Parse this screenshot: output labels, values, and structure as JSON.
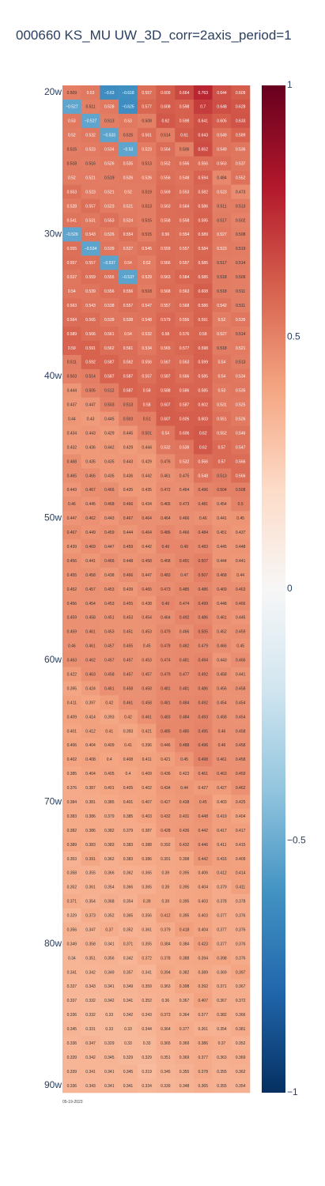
{
  "chart_data": {
    "type": "heatmap",
    "title": "000660 KS_MU UW_3D_corr=2axis_period=1",
    "x_tick_label": "05-19-2023",
    "y_tick_labels": [
      "20w",
      "30w",
      "40w",
      "50w",
      "60w",
      "70w",
      "80w",
      "90w"
    ],
    "y_tick_rows": [
      0,
      10,
      20,
      30,
      40,
      50,
      60,
      70
    ],
    "colorbar": {
      "min": -1,
      "max": 1,
      "ticks": [
        "1",
        "0.5",
        "0",
        "−0.5",
        "−1"
      ],
      "tick_values": [
        1,
        0.5,
        0,
        -0.5,
        -1
      ]
    },
    "colorscale": [
      "#053061",
      "#2166ac",
      "#4393c3",
      "#92c5de",
      "#d1e5f0",
      "#f7f7f7",
      "#fddbc7",
      "#f4a582",
      "#d6604d",
      "#b2182b",
      "#67001f"
    ],
    "rows": [
      [
        0.509,
        0.53,
        -0.63,
        -0.618,
        0.557,
        0.609,
        0.664,
        0.763,
        0.644,
        0.609
      ],
      [
        -0.527,
        0.511,
        0.528,
        -0.625,
        0.577,
        0.608,
        0.598,
        0.7,
        0.648,
        0.628
      ],
      [
        0.53,
        -0.527,
        0.513,
        0.53,
        0.508,
        0.62,
        0.598,
        0.641,
        0.605,
        0.633
      ],
      [
        0.52,
        0.532,
        -0.533,
        0.515,
        0.561,
        0.514,
        0.61,
        0.643,
        0.549,
        0.589
      ],
      [
        0.515,
        0.523,
        0.534,
        -0.53,
        0.523,
        0.564,
        0.506,
        0.652,
        0.549,
        0.536
      ],
      [
        0.518,
        0.516,
        0.526,
        0.535,
        0.513,
        0.552,
        0.556,
        0.556,
        0.563,
        0.537
      ],
      [
        0.52,
        0.521,
        0.519,
        0.526,
        0.526,
        0.556,
        0.548,
        0.594,
        0.484,
        0.552
      ],
      [
        0.553,
        0.523,
        0.521,
        0.52,
        0.519,
        0.569,
        0.553,
        0.582,
        0.523,
        0.473
      ],
      [
        0.528,
        0.557,
        0.523,
        0.521,
        0.513,
        0.563,
        0.564,
        0.586,
        0.511,
        0.513
      ],
      [
        0.541,
        0.531,
        0.553,
        0.524,
        0.515,
        0.558,
        0.558,
        0.595,
        0.517,
        0.502
      ],
      [
        -0.529,
        0.543,
        0.526,
        0.554,
        0.515,
        0.56,
        0.554,
        0.589,
        0.527,
        0.508
      ],
      [
        0.555,
        -0.534,
        0.539,
        0.527,
        0.545,
        0.559,
        0.557,
        0.584,
        0.523,
        0.519
      ],
      [
        0.557,
        0.557,
        -0.537,
        0.54,
        0.52,
        0.566,
        0.557,
        0.585,
        0.517,
        0.514
      ],
      [
        0.537,
        0.559,
        0.555,
        -0.537,
        0.529,
        0.563,
        0.584,
        0.585,
        0.518,
        0.509
      ],
      [
        0.54,
        0.539,
        0.556,
        0.556,
        0.518,
        0.568,
        0.563,
        0.608,
        0.518,
        0.511
      ],
      [
        0.563,
        0.543,
        0.538,
        0.557,
        0.547,
        0.557,
        0.568,
        0.586,
        0.542,
        0.511
      ],
      [
        0.564,
        0.565,
        0.539,
        0.538,
        0.548,
        0.579,
        0.556,
        0.591,
        0.52,
        0.535
      ],
      [
        0.589,
        0.566,
        0.561,
        0.54,
        0.532,
        0.58,
        0.576,
        0.58,
        0.527,
        0.514
      ],
      [
        0.59,
        0.591,
        0.562,
        0.561,
        0.534,
        0.565,
        0.577,
        0.598,
        0.518,
        0.521
      ],
      [
        0.511,
        0.592,
        0.587,
        0.562,
        0.556,
        0.567,
        0.563,
        0.599,
        0.54,
        0.513
      ],
      [
        0.503,
        0.514,
        0.587,
        0.587,
        0.557,
        0.587,
        0.566,
        0.585,
        0.54,
        0.534
      ],
      [
        0.444,
        0.505,
        0.512,
        0.587,
        0.58,
        0.588,
        0.586,
        0.585,
        0.53,
        0.535
      ],
      [
        0.437,
        0.447,
        0.503,
        0.513,
        0.58,
        0.607,
        0.587,
        0.602,
        0.531,
        0.525
      ],
      [
        0.44,
        0.43,
        0.445,
        0.503,
        0.51,
        0.607,
        0.605,
        0.603,
        0.551,
        0.526
      ],
      [
        0.434,
        0.443,
        0.429,
        0.445,
        0.501,
        0.54,
        0.606,
        0.62,
        0.552,
        0.546
      ],
      [
        0.432,
        0.436,
        0.442,
        0.429,
        0.444,
        0.532,
        0.539,
        0.62,
        0.57,
        0.547
      ],
      [
        0.468,
        0.435,
        0.435,
        0.443,
        0.429,
        0.476,
        0.532,
        0.556,
        0.57,
        0.566
      ],
      [
        0.465,
        0.466,
        0.435,
        0.436,
        0.442,
        0.461,
        0.475,
        0.548,
        0.513,
        0.566
      ],
      [
        0.443,
        0.467,
        0.466,
        0.435,
        0.435,
        0.472,
        0.464,
        0.496,
        0.504,
        0.508
      ],
      [
        0.46,
        0.445,
        0.468,
        0.466,
        0.434,
        0.465,
        0.473,
        0.481,
        0.454,
        0.5
      ],
      [
        0.447,
        0.462,
        0.443,
        0.467,
        0.464,
        0.464,
        0.466,
        0.46,
        0.441,
        0.45
      ],
      [
        0.467,
        0.449,
        0.459,
        0.444,
        0.464,
        0.486,
        0.466,
        0.484,
        0.451,
        0.437
      ],
      [
        0.439,
        0.469,
        0.447,
        0.459,
        0.442,
        0.49,
        0.49,
        0.483,
        0.445,
        0.448
      ],
      [
        0.456,
        0.441,
        0.466,
        0.448,
        0.458,
        0.468,
        0.491,
        0.507,
        0.444,
        0.441
      ],
      [
        0.455,
        0.458,
        0.438,
        0.466,
        0.447,
        0.483,
        0.47,
        0.507,
        0.468,
        0.44
      ],
      [
        0.452,
        0.457,
        0.453,
        0.439,
        0.465,
        0.473,
        0.485,
        0.486,
        0.469,
        0.463
      ],
      [
        0.456,
        0.454,
        0.453,
        0.455,
        0.438,
        0.49,
        0.474,
        0.499,
        0.448,
        0.466
      ],
      [
        0.459,
        0.458,
        0.451,
        0.453,
        0.454,
        0.464,
        0.492,
        0.486,
        0.461,
        0.445
      ],
      [
        0.459,
        0.461,
        0.453,
        0.451,
        0.453,
        0.479,
        0.466,
        0.505,
        0.452,
        0.459
      ],
      [
        0.46,
        0.461,
        0.457,
        0.455,
        0.45,
        0.478,
        0.482,
        0.479,
        0.466,
        0.45
      ],
      [
        0.463,
        0.462,
        0.457,
        0.457,
        0.453,
        0.474,
        0.481,
        0.494,
        0.443,
        0.466
      ],
      [
        0.422,
        0.463,
        0.458,
        0.457,
        0.457,
        0.479,
        0.477,
        0.492,
        0.458,
        0.441
      ],
      [
        0.395,
        0.424,
        0.461,
        0.458,
        0.458,
        0.481,
        0.481,
        0.486,
        0.456,
        0.458
      ],
      [
        0.411,
        0.397,
        0.42,
        0.461,
        0.458,
        0.481,
        0.484,
        0.492,
        0.454,
        0.454
      ],
      [
        0.409,
        0.414,
        0.393,
        0.42,
        0.461,
        0.483,
        0.484,
        0.493,
        0.458,
        0.454
      ],
      [
        0.401,
        0.412,
        0.41,
        0.393,
        0.421,
        0.485,
        0.485,
        0.495,
        0.46,
        0.458
      ],
      [
        0.406,
        0.404,
        0.409,
        0.41,
        0.396,
        0.446,
        0.488,
        0.496,
        0.46,
        0.458
      ],
      [
        0.402,
        0.408,
        0.4,
        0.408,
        0.411,
        0.421,
        0.45,
        0.498,
        0.461,
        0.458
      ],
      [
        0.385,
        0.404,
        0.405,
        0.4,
        0.409,
        0.436,
        0.423,
        0.461,
        0.463,
        0.459
      ],
      [
        0.376,
        0.387,
        0.401,
        0.405,
        0.402,
        0.434,
        0.44,
        0.427,
        0.427,
        0.462
      ],
      [
        0.384,
        0.381,
        0.385,
        0.401,
        0.407,
        0.427,
        0.438,
        0.45,
        0.403,
        0.425
      ],
      [
        0.383,
        0.386,
        0.379,
        0.385,
        0.403,
        0.432,
        0.431,
        0.448,
        0.419,
        0.404
      ],
      [
        0.382,
        0.386,
        0.382,
        0.379,
        0.387,
        0.428,
        0.436,
        0.442,
        0.417,
        0.417
      ],
      [
        0.389,
        0.383,
        0.383,
        0.383,
        0.388,
        0.392,
        0.432,
        0.446,
        0.411,
        0.415
      ],
      [
        0.353,
        0.391,
        0.362,
        0.383,
        0.386,
        0.391,
        0.398,
        0.442,
        0.416,
        0.409
      ],
      [
        0.358,
        0.355,
        0.366,
        0.362,
        0.365,
        0.39,
        0.395,
        0.406,
        0.412,
        0.414
      ],
      [
        0.352,
        0.361,
        0.354,
        0.366,
        0.365,
        0.39,
        0.395,
        0.404,
        0.379,
        0.411
      ],
      [
        0.371,
        0.354,
        0.368,
        0.354,
        0.39,
        0.39,
        0.395,
        0.403,
        0.378,
        0.378
      ],
      [
        0.329,
        0.373,
        0.352,
        0.365,
        0.356,
        0.412,
        0.395,
        0.403,
        0.377,
        0.376
      ],
      [
        0.356,
        0.347,
        0.37,
        0.352,
        0.361,
        0.379,
        0.418,
        0.404,
        0.377,
        0.376
      ],
      [
        0.349,
        0.358,
        0.341,
        0.371,
        0.355,
        0.384,
        0.384,
        0.423,
        0.377,
        0.376
      ],
      [
        0.34,
        0.351,
        0.356,
        0.342,
        0.372,
        0.378,
        0.388,
        0.394,
        0.398,
        0.376
      ],
      [
        0.341,
        0.342,
        0.349,
        0.357,
        0.341,
        0.394,
        0.382,
        0.389,
        0.369,
        0.397
      ],
      [
        0.337,
        0.343,
        0.341,
        0.349,
        0.359,
        0.363,
        0.398,
        0.392,
        0.371,
        0.367
      ],
      [
        0.337,
        0.332,
        0.342,
        0.341,
        0.352,
        0.36,
        0.367,
        0.407,
        0.367,
        0.372
      ],
      [
        0.336,
        0.332,
        0.33,
        0.342,
        0.343,
        0.373,
        0.364,
        0.377,
        0.382,
        0.366
      ],
      [
        0.345,
        0.331,
        0.33,
        0.33,
        0.344,
        0.364,
        0.377,
        0.361,
        0.354,
        0.381
      ],
      [
        0.336,
        0.347,
        0.329,
        0.33,
        0.33,
        0.365,
        0.369,
        0.386,
        0.37,
        0.352
      ],
      [
        0.339,
        0.342,
        0.345,
        0.329,
        0.329,
        0.351,
        0.369,
        0.377,
        0.363,
        0.369
      ],
      [
        0.339,
        0.341,
        0.341,
        0.345,
        0.319,
        0.345,
        0.355,
        0.378,
        0.355,
        0.362
      ],
      [
        0.336,
        0.343,
        0.341,
        0.341,
        0.334,
        0.339,
        0.348,
        0.365,
        0.355,
        0.354
      ]
    ]
  }
}
